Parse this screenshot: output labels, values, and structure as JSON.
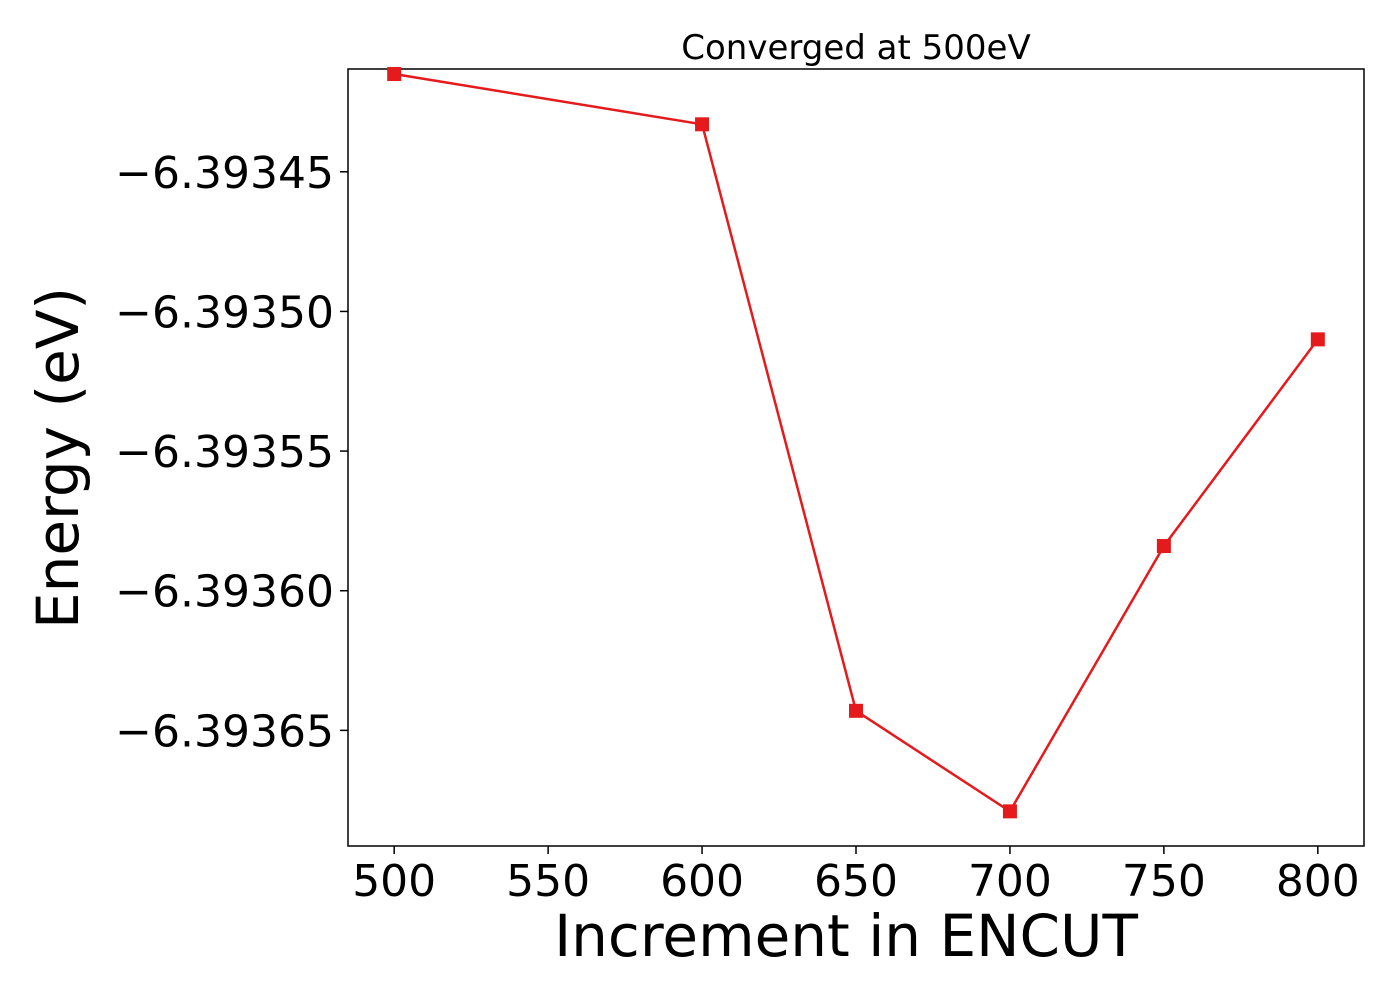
{
  "chart_data": {
    "type": "line",
    "title": "Converged at 500eV",
    "xlabel": "Increment in ENCUT",
    "ylabel": "Energy (eV)",
    "x": [
      500,
      600,
      650,
      700,
      750,
      800
    ],
    "series": [
      {
        "values": [
          -6.393415,
          -6.393433,
          -6.393643,
          -6.393679,
          -6.393584,
          -6.39351
        ],
        "color": "#e41a1c",
        "marker": "square"
      }
    ],
    "xlim": [
      485,
      815
    ],
    "ylim": [
      -6.3936914,
      -6.3934132
    ],
    "xticks": [
      500,
      550,
      600,
      650,
      700,
      750,
      800
    ],
    "xtick_labels": [
      "500",
      "550",
      "600",
      "650",
      "700",
      "750",
      "800"
    ],
    "yticks": [
      -6.39345,
      -6.3935,
      -6.39355,
      -6.3936,
      -6.39365
    ],
    "ytick_labels": [
      "−6.39345",
      "−6.39350",
      "−6.39355",
      "−6.39360",
      "−6.39365"
    ],
    "grid": false,
    "legend": "none"
  }
}
